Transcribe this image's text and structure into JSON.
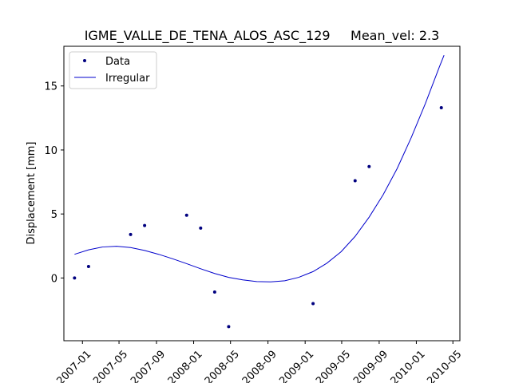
{
  "chart_data": {
    "type": "scatter",
    "title": "IGME_VALLE_DE_TENA_ALOS_ASC_129     Mean_vel: 2.3",
    "xlabel": "",
    "ylabel": "Displacement [mm]",
    "xlim": [
      "2006-11-01",
      "2010-05-24"
    ],
    "ylim": [
      -4.9,
      18.1
    ],
    "x_ticks": [
      "2007-01",
      "2007-05",
      "2007-09",
      "2008-01",
      "2008-05",
      "2008-09",
      "2009-01",
      "2009-05",
      "2009-09",
      "2010-01",
      "2010-05"
    ],
    "y_ticks": [
      0,
      5,
      10,
      15
    ],
    "grid": false,
    "legend": {
      "placement": "top-left",
      "entries": [
        "Data",
        "Irregular"
      ]
    },
    "series": [
      {
        "name": "Data",
        "style": "points",
        "color": "#00007f",
        "x": [
          "2006-12-06",
          "2007-01-21",
          "2007-06-08",
          "2007-07-24",
          "2007-12-09",
          "2008-01-24",
          "2008-03-10",
          "2008-04-25",
          "2009-01-27",
          "2009-06-14",
          "2009-07-30",
          "2010-03-24"
        ],
        "y": [
          0.0,
          0.9,
          3.4,
          4.1,
          4.9,
          3.9,
          -1.1,
          -3.8,
          -2.0,
          7.6,
          8.7,
          13.3
        ]
      },
      {
        "name": "Irregular",
        "style": "line",
        "color": "#0000cc",
        "x": [
          "2006-12-06",
          "2007-01-21",
          "2007-03-08",
          "2007-04-23",
          "2007-06-08",
          "2007-07-24",
          "2007-09-08",
          "2007-10-24",
          "2007-12-09",
          "2008-01-24",
          "2008-03-10",
          "2008-04-25",
          "2008-06-10",
          "2008-07-26",
          "2008-09-10",
          "2008-10-26",
          "2008-12-11",
          "2009-01-27",
          "2009-03-13",
          "2009-04-29",
          "2009-06-14",
          "2009-07-30",
          "2009-09-14",
          "2009-10-30",
          "2009-12-15",
          "2010-01-31",
          "2010-03-17",
          "2010-04-02"
        ],
        "y": [
          1.85,
          2.2,
          2.42,
          2.48,
          2.38,
          2.15,
          1.85,
          1.5,
          1.12,
          0.72,
          0.35,
          0.05,
          -0.15,
          -0.28,
          -0.3,
          -0.22,
          0.05,
          0.5,
          1.15,
          2.05,
          3.25,
          4.75,
          6.5,
          8.55,
          10.95,
          13.65,
          16.45,
          17.4
        ]
      }
    ]
  }
}
